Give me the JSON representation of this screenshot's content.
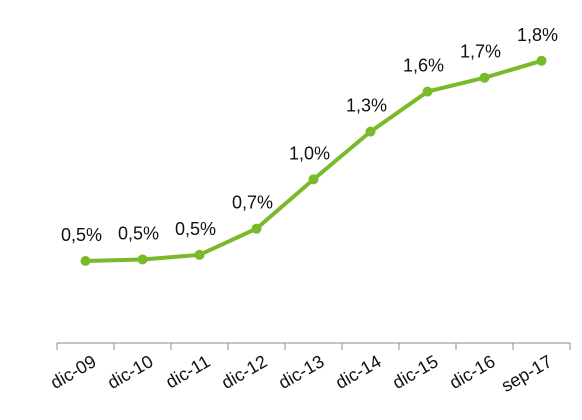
{
  "chart_data": {
    "type": "line",
    "categories": [
      "dic-09",
      "dic-10",
      "dic-11",
      "dic-12",
      "dic-13",
      "dic-14",
      "dic-15",
      "dic-16",
      "sep-17"
    ],
    "series": [
      {
        "name": null,
        "color": "#7ab929",
        "values": [
          0.5,
          0.51,
          0.54,
          0.71,
          1.03,
          1.34,
          1.6,
          1.69,
          1.8
        ],
        "value_labels": [
          "0,5%",
          "0,5%",
          "0,5%",
          "0,7%",
          "1,0%",
          "1,3%",
          "1,6%",
          "1,7%",
          "1,8%"
        ]
      }
    ],
    "ylim": [
      0,
      2
    ]
  }
}
